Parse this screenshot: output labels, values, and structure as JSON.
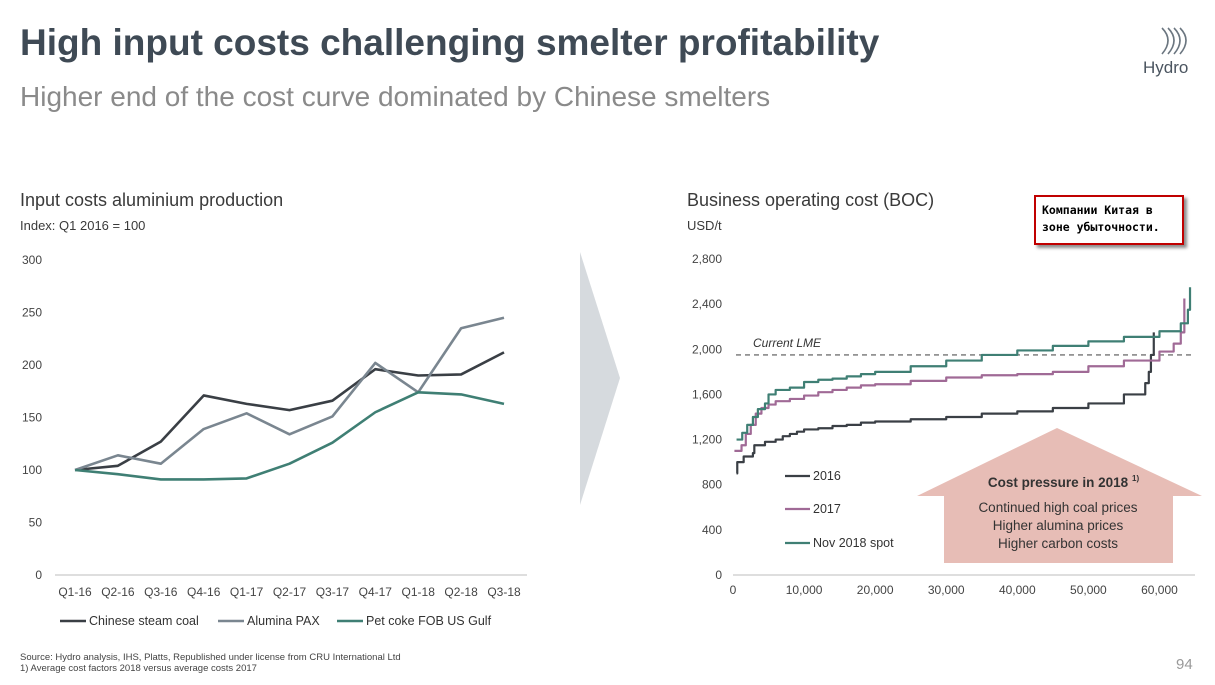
{
  "header": {
    "title": "High input costs challenging smelter profitability",
    "subtitle": "Higher end of the cost curve dominated by Chinese smelters",
    "logo_text": "Hydro"
  },
  "colors": {
    "dark": "#3a3f45",
    "gray": "#7a8690",
    "teal": "#3f7f74",
    "mauve": "#a06a96",
    "arrow_fill": "#e7bdb6",
    "callout_border": "#c00000"
  },
  "chart_data": [
    {
      "type": "line",
      "title": "Input costs aluminium production",
      "subtitle": "Index: Q1 2016 = 100",
      "categories": [
        "Q1-16",
        "Q2-16",
        "Q3-16",
        "Q4-16",
        "Q1-17",
        "Q2-17",
        "Q3-17",
        "Q4-17",
        "Q1-18",
        "Q2-18",
        "Q3-18"
      ],
      "yticks": [
        0,
        50,
        100,
        150,
        200,
        250,
        300
      ],
      "ylim": [
        0,
        300
      ],
      "legend_position": "bottom",
      "series": [
        {
          "name": "Chinese steam coal",
          "color": "#3a3f45",
          "values": [
            100,
            104,
            127,
            171,
            163,
            157,
            166,
            196,
            190,
            191,
            212
          ]
        },
        {
          "name": "Alumina PAX",
          "color": "#7a8690",
          "values": [
            100,
            114,
            106,
            139,
            154,
            134,
            151,
            202,
            174,
            235,
            245
          ]
        },
        {
          "name": "Pet coke FOB US Gulf",
          "color": "#3f7f74",
          "values": [
            100,
            96,
            91,
            91,
            92,
            106,
            126,
            155,
            174,
            172,
            163
          ]
        }
      ]
    },
    {
      "type": "line",
      "title": "Business operating cost (BOC)",
      "ylabel": "USD/t",
      "xlim": [
        0,
        65000
      ],
      "ylim": [
        0,
        2800
      ],
      "xticks": [
        0,
        10000,
        20000,
        30000,
        40000,
        50000,
        60000
      ],
      "xtick_labels": [
        "0",
        "10,000",
        "20,000",
        "30,000",
        "40,000",
        "50,000",
        "60,000"
      ],
      "yticks": [
        0,
        400,
        800,
        1200,
        1600,
        2000,
        2400,
        2800
      ],
      "ytick_labels": [
        "0",
        "400",
        "800",
        "1,200",
        "1,600",
        "2,000",
        "2,400",
        "2,800"
      ],
      "reference_line": {
        "label": "Current LME",
        "y": 1950
      },
      "series": [
        {
          "name": "2016",
          "color": "#3a3f45",
          "x": [
            500,
            600,
            1500,
            2800,
            3000,
            4500,
            6000,
            7000,
            8000,
            9000,
            10000,
            12000,
            14000,
            16000,
            18000,
            20000,
            25000,
            30000,
            35000,
            40000,
            45000,
            50000,
            55000,
            58000,
            58500,
            58800,
            59200
          ],
          "y": [
            900,
            1000,
            1050,
            1080,
            1150,
            1180,
            1200,
            1230,
            1250,
            1270,
            1290,
            1300,
            1320,
            1330,
            1350,
            1360,
            1380,
            1400,
            1430,
            1450,
            1480,
            1520,
            1600,
            1700,
            1800,
            1950,
            2150
          ]
        },
        {
          "name": "2017",
          "color": "#a06a96",
          "x": [
            200,
            1200,
            1800,
            2500,
            3200,
            4000,
            5000,
            6000,
            8000,
            10000,
            12000,
            14000,
            16000,
            18000,
            20000,
            25000,
            30000,
            35000,
            40000,
            45000,
            50000,
            55000,
            60000,
            62000,
            63000,
            63500
          ],
          "y": [
            1100,
            1150,
            1250,
            1330,
            1430,
            1480,
            1510,
            1540,
            1560,
            1590,
            1620,
            1640,
            1660,
            1680,
            1690,
            1720,
            1750,
            1770,
            1780,
            1800,
            1850,
            1900,
            1980,
            2050,
            2150,
            2450
          ]
        },
        {
          "name": "Nov 2018 spot",
          "color": "#3f7f74",
          "x": [
            500,
            1300,
            2000,
            2800,
            3500,
            4500,
            5000,
            6000,
            8000,
            10000,
            12000,
            14000,
            16000,
            18000,
            20000,
            25000,
            30000,
            35000,
            40000,
            45000,
            50000,
            55000,
            60000,
            63000,
            64000,
            64300
          ],
          "y": [
            1200,
            1260,
            1330,
            1400,
            1470,
            1520,
            1600,
            1640,
            1660,
            1710,
            1730,
            1740,
            1760,
            1780,
            1800,
            1850,
            1900,
            1950,
            1990,
            2030,
            2070,
            2110,
            2160,
            2230,
            2350,
            2550
          ]
        }
      ]
    }
  ],
  "cost_pressure": {
    "title": "Cost pressure in 2018",
    "superscript": "1)",
    "items": [
      "Continued high coal prices",
      "Higher alumina prices",
      "Higher carbon costs"
    ]
  },
  "callout": {
    "line1": "Компании Китая в",
    "line2": "зоне убыточности."
  },
  "footer": {
    "source": "Source: Hydro analysis, IHS, Platts, Republished under license from CRU International Ltd",
    "note": "1) Average cost factors 2018 versus average costs 2017"
  },
  "page_number": "94"
}
